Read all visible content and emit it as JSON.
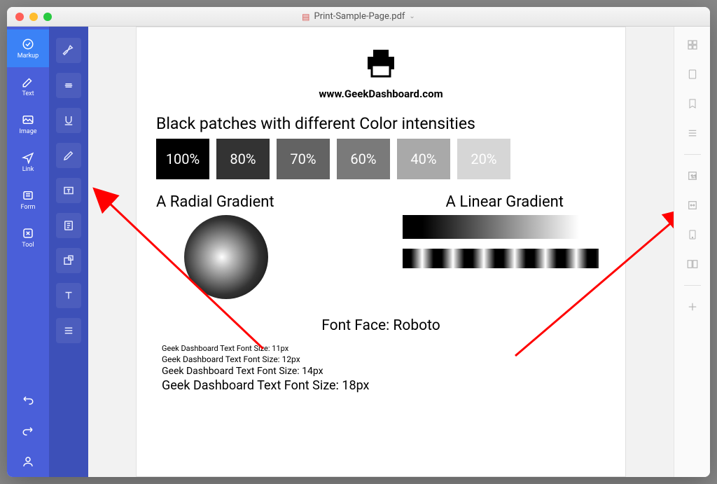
{
  "window": {
    "title": "Print-Sample-Page.pdf"
  },
  "sidebar1": {
    "items": [
      {
        "label": "Markup",
        "active": true
      },
      {
        "label": "Text"
      },
      {
        "label": "Image"
      },
      {
        "label": "Link"
      },
      {
        "label": "Form"
      },
      {
        "label": "Tool"
      }
    ]
  },
  "colors": {
    "sidebar1_bg": "#4a5fd9",
    "sidebar1_active": "#3b82f6",
    "sidebar2_bg": "#3d50b8",
    "page_bg": "#f2f2f2",
    "arrow": "#ff0000"
  },
  "document": {
    "site_url": "www.GeekDashboard.com",
    "patches_title": "Black patches with different Color intensities",
    "patches": [
      {
        "label": "100%",
        "color": "#000000"
      },
      {
        "label": "80%",
        "color": "#333333"
      },
      {
        "label": "70%",
        "color": "#636363"
      },
      {
        "label": "60%",
        "color": "#7a7a7a"
      },
      {
        "label": "40%",
        "color": "#a9a9a9"
      },
      {
        "label": "20%",
        "color": "#d6d6d6"
      }
    ],
    "radial_title": "A Radial Gradient",
    "linear_title": "A Linear Gradient",
    "font_face_title": "Font Face: Roboto",
    "font_samples": [
      {
        "text": "Geek Dashboard Text Font Size: 11px",
        "size": 11
      },
      {
        "text": "Geek Dashboard Text Font Size: 12px",
        "size": 12
      },
      {
        "text": "Geek Dashboard Text Font Size: 14px",
        "size": 14
      },
      {
        "text": "Geek Dashboard Text Font Size: 18px",
        "size": 18
      }
    ]
  }
}
